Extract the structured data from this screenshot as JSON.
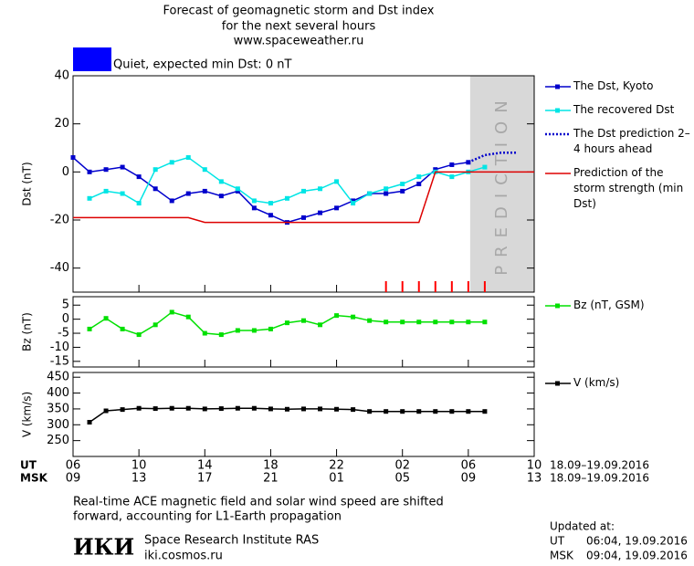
{
  "header": {
    "title": [
      "Forecast of geomagnetic storm and Dst index",
      "for the next several hours",
      "www.spaceweather.ru"
    ],
    "status": {
      "label": "Quiet, expected min Dst: 0 nT",
      "color": "#0000ff"
    }
  },
  "chart_data": [
    {
      "type": "line",
      "ylabel": "Dst (nT)",
      "xlim": [
        0,
        28
      ],
      "ylim": [
        -50,
        40
      ],
      "yticks": [
        40,
        20,
        0,
        -20,
        -40
      ],
      "shaded_region": {
        "xlim": [
          24,
          28
        ],
        "label": "PREDICTION",
        "color": "#d8d8d8"
      },
      "event_ticks": {
        "x": [
          19,
          20,
          21,
          22,
          23,
          24,
          25
        ],
        "color": "#ff0000"
      },
      "series": [
        {
          "name": "The Dst, Kyoto",
          "color": "#0000cc",
          "marker": "square",
          "x": [
            0,
            1,
            2,
            3,
            4,
            5,
            6,
            7,
            8,
            9,
            10,
            11,
            12,
            13,
            14,
            15,
            16,
            17,
            18,
            19,
            20,
            21,
            22,
            23,
            24
          ],
          "values": [
            6,
            0,
            1,
            2,
            -2,
            -7,
            -12,
            -9,
            -8,
            -10,
            -8,
            -15,
            -18,
            -21,
            -19,
            -17,
            -15,
            -12,
            -9,
            -9,
            -8,
            -5,
            1,
            3,
            4
          ]
        },
        {
          "name": "The recovered Dst",
          "color": "#00e5e5",
          "marker": "square",
          "x": [
            1,
            2,
            3,
            4,
            5,
            6,
            7,
            8,
            9,
            10,
            11,
            12,
            13,
            14,
            15,
            16,
            17,
            18,
            19,
            20,
            21,
            22,
            23,
            24,
            25
          ],
          "values": [
            -11,
            -8,
            -9,
            -13,
            1,
            4,
            6,
            1,
            -4,
            -7,
            -12,
            -13,
            -11,
            -8,
            -7,
            -4,
            -13,
            -9,
            -7,
            -5,
            -2,
            0,
            -2,
            0,
            2
          ]
        },
        {
          "name": "The Dst prediction 2–4 hours ahead",
          "color": "#0000cc",
          "dash": "dotted",
          "x": [
            24,
            25,
            26,
            27
          ],
          "values": [
            4,
            7,
            8,
            8
          ]
        },
        {
          "name": "Prediction of the storm strength (min Dst)",
          "color": "#dd0000",
          "x": [
            0,
            7,
            8,
            21,
            22,
            28
          ],
          "values": [
            -19,
            -19,
            -21,
            -21,
            0,
            0
          ]
        }
      ]
    },
    {
      "type": "line",
      "ylabel": "Bz (nT)",
      "xlim": [
        0,
        28
      ],
      "ylim": [
        -17,
        8
      ],
      "yticks": [
        5,
        0,
        -5,
        -10,
        -15
      ],
      "series": [
        {
          "name": "Bz (nT, GSM)",
          "color": "#00e000",
          "marker": "square",
          "x": [
            1,
            2,
            3,
            4,
            5,
            6,
            7,
            8,
            9,
            10,
            11,
            12,
            13,
            14,
            15,
            16,
            17,
            18,
            19,
            20,
            21,
            22,
            23,
            24,
            25
          ],
          "values": [
            -3.5,
            0.3,
            -3.5,
            -5.5,
            -2,
            2.5,
            0.8,
            -5,
            -5.5,
            -4,
            -4,
            -3.5,
            -1.3,
            -0.5,
            -2,
            1.3,
            0.8,
            -0.5,
            -1,
            -1,
            -1,
            -1,
            -1,
            -1,
            -1
          ]
        }
      ]
    },
    {
      "type": "line",
      "ylabel": "V (km/s)",
      "xlim": [
        0,
        28
      ],
      "ylim": [
        200,
        465
      ],
      "yticks": [
        450,
        400,
        350,
        300,
        250
      ],
      "series": [
        {
          "name": "V (km/s)",
          "color": "#000000",
          "marker": "square",
          "x": [
            1,
            2,
            3,
            4,
            5,
            6,
            7,
            8,
            9,
            10,
            11,
            12,
            13,
            14,
            15,
            16,
            17,
            18,
            19,
            20,
            21,
            22,
            23,
            24,
            25
          ],
          "values": [
            308,
            344,
            348,
            352,
            351,
            352,
            352,
            350,
            351,
            352,
            352,
            350,
            349,
            350,
            350,
            349,
            348,
            342,
            342,
            342,
            342,
            342,
            342,
            342,
            342
          ]
        }
      ],
      "xticks": [
        {
          "value": 0,
          "label": "06"
        },
        {
          "value": 4,
          "label": "10"
        },
        {
          "value": 8,
          "label": "14"
        },
        {
          "value": 12,
          "label": "18"
        },
        {
          "value": 16,
          "label": "22"
        },
        {
          "value": 20,
          "label": "02"
        },
        {
          "value": 24,
          "label": "06"
        },
        {
          "value": 28,
          "label": "10"
        }
      ],
      "xticks_msk": [
        {
          "value": 0,
          "label": "09"
        },
        {
          "value": 4,
          "label": "13"
        },
        {
          "value": 8,
          "label": "17"
        },
        {
          "value": 12,
          "label": "21"
        },
        {
          "value": 16,
          "label": "01"
        },
        {
          "value": 20,
          "label": "05"
        },
        {
          "value": 24,
          "label": "09"
        },
        {
          "value": 28,
          "label": "13"
        }
      ],
      "x_rows": [
        {
          "label": "UT",
          "dates": "18.09–19.09.2016"
        },
        {
          "label": "MSK",
          "dates": "18.09–19.09.2016"
        }
      ]
    }
  ],
  "footer": {
    "note": [
      "Real-time ACE magnetic field and solar wind speed are shifted",
      "forward, accounting for L1-Earth propagation"
    ],
    "logo": "ИКИ",
    "institute": "Space Research Institute RAS",
    "site": "iki.cosmos.ru",
    "updated": {
      "title": "Updated at:",
      "rows": [
        {
          "zone": "UT",
          "time": "06:04, 19.09.2016"
        },
        {
          "zone": "MSK",
          "time": "09:04, 19.09.2016"
        }
      ]
    }
  }
}
